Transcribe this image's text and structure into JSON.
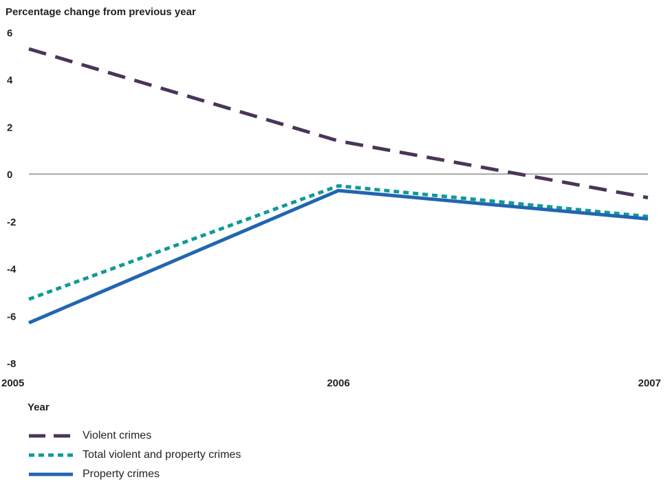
{
  "chart_data": {
    "type": "line",
    "title": "",
    "ylabel": "Percentage change from previous year",
    "xlabel": "Year",
    "x": [
      2005,
      2006,
      2007
    ],
    "x_tick_labels": [
      "2005",
      "2006",
      "2007"
    ],
    "y_ticks": [
      6,
      4,
      2,
      0,
      -2,
      -4,
      -6,
      -8
    ],
    "y_tick_labels": [
      "6",
      "4",
      "2",
      "0",
      "-2",
      "-4",
      "-6",
      "-8"
    ],
    "ylim": [
      -8,
      6
    ],
    "xlim": [
      2005,
      2007
    ],
    "grid": false,
    "zero_line": true,
    "legend_position": "bottom-left",
    "series": [
      {
        "name": "Violent crimes",
        "values": [
          5.3,
          1.4,
          -1.0
        ],
        "color": "#4a3557",
        "style": "dashed"
      },
      {
        "name": "Total violent and property crimes",
        "values": [
          -5.3,
          -0.5,
          -1.8
        ],
        "color": "#109a99",
        "style": "dotted"
      },
      {
        "name": "Property crimes",
        "values": [
          -6.3,
          -0.7,
          -1.9
        ],
        "color": "#2166b0",
        "style": "solid"
      }
    ]
  }
}
